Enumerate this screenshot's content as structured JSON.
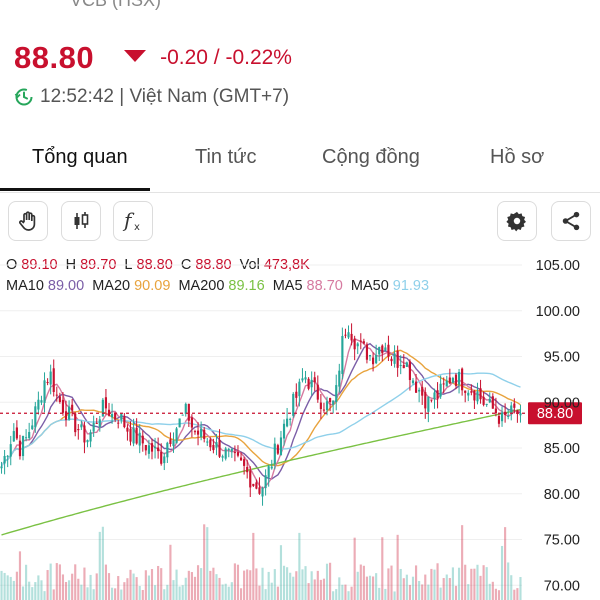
{
  "header": {
    "symbol_cut": "VCB (HSX)",
    "price": "88.80",
    "change": "-0.20 / -0.22%",
    "time": "12:52:42 | Việt Nam (GMT+7)",
    "colors": {
      "down": "#c8102e",
      "up": "#26a69a"
    }
  },
  "tabs": [
    {
      "label": "Tổng quan",
      "active": true
    },
    {
      "label": "Tin tức",
      "active": false
    },
    {
      "label": "Cộng đồng",
      "active": false
    },
    {
      "label": "Hồ sơ",
      "active": false
    }
  ],
  "toolbar": {
    "left_icons": [
      "hand-icon",
      "candlestick-icon",
      "function-icon"
    ],
    "right_icons": [
      "gear-icon",
      "share-icon"
    ]
  },
  "ohlc": {
    "o_label": "O",
    "o": "89.10",
    "h_label": "H",
    "h": "89.70",
    "l_label": "L",
    "l": "88.80",
    "c_label": "C",
    "c": "88.80",
    "vol_label": "Vol",
    "vol": "473,8K"
  },
  "ma": [
    {
      "label": "MA10",
      "value": "89.00",
      "color": "#7b5ea7"
    },
    {
      "label": "MA20",
      "value": "90.09",
      "color": "#e8a33d"
    },
    {
      "label": "MA200",
      "value": "89.16",
      "color": "#7ac143"
    },
    {
      "label": "MA5",
      "value": "88.70",
      "color": "#d67aa0"
    },
    {
      "label": "MA50",
      "value": "91.93",
      "color": "#8fd0ea"
    }
  ],
  "chart_data": {
    "type": "candlestick",
    "y_ticks": [
      "105.00",
      "100.00",
      "95.00",
      "90.00",
      "85.00",
      "80.00",
      "75.00",
      "70.00"
    ],
    "ylim": [
      70,
      105
    ],
    "last_price_label": "88.80",
    "last_price": 88.8,
    "close": [
      83,
      85,
      87,
      85,
      86,
      88,
      90,
      92.5,
      93,
      90.5,
      89.5,
      88.5,
      87.5,
      86.5,
      86,
      87.5,
      89,
      89.5,
      88.5,
      88.5,
      87.5,
      86.5,
      86,
      85.5,
      85,
      84.5,
      84,
      86,
      87,
      88,
      89,
      87,
      86.5,
      86,
      85.5,
      85,
      84.5,
      84,
      83.5,
      83,
      82,
      81,
      80.5,
      82,
      84,
      86,
      88,
      89.5,
      91,
      93,
      92,
      91,
      90,
      89.5,
      90,
      96,
      99,
      97,
      96,
      95.5,
      95,
      96,
      96.5,
      95,
      94.5,
      95,
      93.5,
      92,
      91,
      90,
      90.5,
      91,
      92,
      93,
      92.5,
      92,
      91.5,
      91,
      90,
      89.5,
      89,
      88,
      88.5,
      89,
      88.8
    ]
  }
}
